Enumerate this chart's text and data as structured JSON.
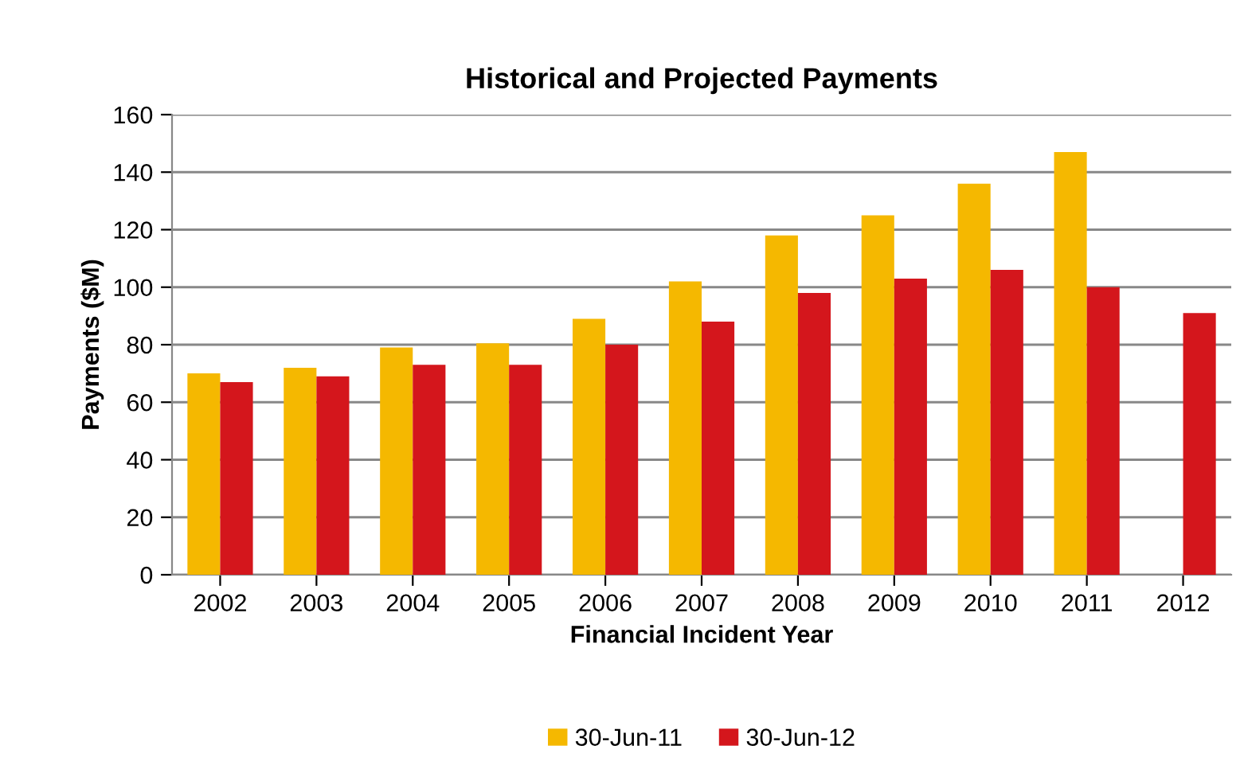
{
  "chart_data": {
    "type": "bar",
    "title": "Historical and Projected Payments",
    "xlabel": "Financial Incident Year",
    "ylabel": "Payments ($M)",
    "categories": [
      "2002",
      "2003",
      "2004",
      "2005",
      "2006",
      "2007",
      "2008",
      "2009",
      "2010",
      "2011",
      "2012"
    ],
    "series": [
      {
        "name": "30-Jun-11",
        "color": "#f5b800",
        "values": [
          70,
          72,
          79,
          80.5,
          89,
          102,
          118,
          125,
          136,
          147,
          null
        ]
      },
      {
        "name": "30-Jun-12",
        "color": "#d4161c",
        "values": [
          67,
          69,
          73,
          73,
          80,
          88,
          98,
          103,
          106,
          100,
          91
        ]
      }
    ],
    "ylim": [
      0,
      160
    ],
    "yticks": [
      0,
      20,
      40,
      60,
      80,
      100,
      120,
      140,
      160
    ],
    "grid": "y",
    "legend": "bottom"
  }
}
